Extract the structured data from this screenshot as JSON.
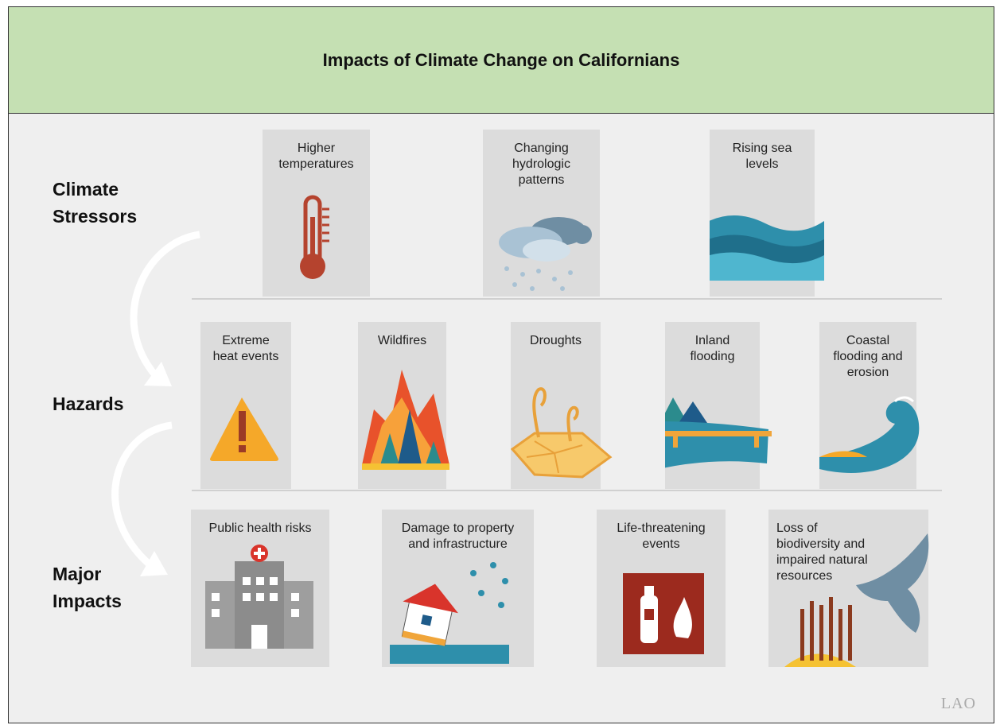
{
  "header": {
    "title": "Impacts of Climate Change on Californians"
  },
  "rows": [
    {
      "label": "Climate Stressors",
      "items": [
        "Higher temperatures",
        "Changing hydrologic patterns",
        "Rising sea levels"
      ]
    },
    {
      "label": "Hazards",
      "items": [
        "Extreme heat events",
        "Wildfires",
        "Droughts",
        "Inland flooding",
        "Coastal flooding and erosion"
      ]
    },
    {
      "label": "Major Impacts",
      "items": [
        "Public health risks",
        "Damage to property and infrastructure",
        "Life-threatening events",
        "Loss of biodiversity and impaired natural resources"
      ]
    }
  ],
  "logo": "LAO"
}
